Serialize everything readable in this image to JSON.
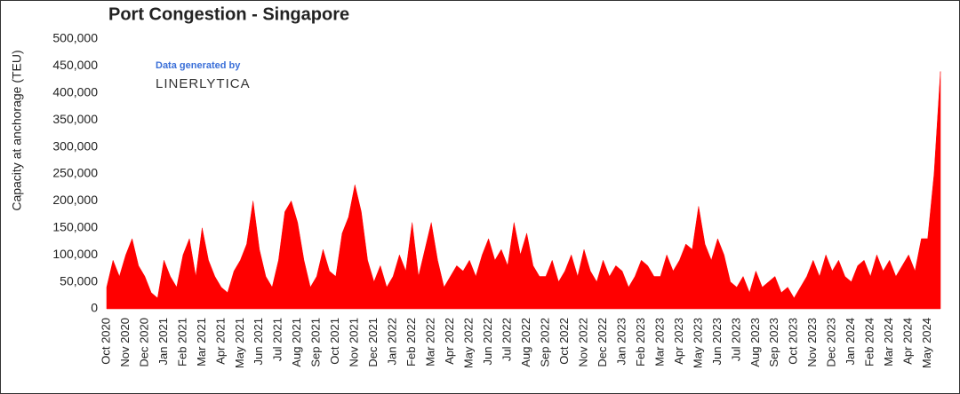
{
  "chart_data": {
    "type": "area",
    "title": "Port Congestion - Singapore",
    "y_label": "Capacity at anchorage (TEU)",
    "annotations": [
      "Data generated by",
      "LINERLYTICA"
    ],
    "color": "#ff0000",
    "ylim": [
      0,
      500000
    ],
    "yticks": [
      0,
      {
        "value": 50000,
        "label": "50,000"
      },
      {
        "value": 100000,
        "label": "100,000"
      },
      {
        "value": 150000,
        "label": "150,000"
      },
      {
        "value": 200000,
        "label": "200,000"
      },
      {
        "value": 250000,
        "label": "250,000"
      },
      {
        "value": 300000,
        "label": "300,000"
      },
      {
        "value": 350000,
        "label": "350,000"
      },
      {
        "value": 400000,
        "label": "400,000"
      },
      {
        "value": 450000,
        "label": "450,000"
      },
      {
        "value": 500000,
        "label": "500,000"
      }
    ],
    "categories": [
      "Oct 2020",
      null,
      null,
      "Nov 2020",
      null,
      null,
      "Dec 2020",
      null,
      null,
      "Jan 2021",
      null,
      null,
      "Feb 2021",
      null,
      null,
      "Mar 2021",
      null,
      null,
      "Apr 2021",
      null,
      null,
      "May 2021",
      null,
      null,
      "Jun 2021",
      null,
      null,
      "Jul 2021",
      null,
      null,
      "Aug 2021",
      null,
      null,
      "Sep 2021",
      null,
      null,
      "Oct 2021",
      null,
      null,
      "Nov 2021",
      null,
      null,
      "Dec 2021",
      null,
      null,
      "Jan 2022",
      null,
      null,
      "Feb 2022",
      null,
      null,
      "Mar 2022",
      null,
      null,
      "Apr 2022",
      null,
      null,
      "May 2022",
      null,
      null,
      "Jun 2022",
      null,
      null,
      "Jul 2022",
      null,
      null,
      "Aug 2022",
      null,
      null,
      "Sep 2022",
      null,
      null,
      "Oct 2022",
      null,
      null,
      "Nov 2022",
      null,
      null,
      "Dec 2022",
      null,
      null,
      "Jan 2023",
      null,
      null,
      "Feb 2023",
      null,
      null,
      "Mar 2023",
      null,
      null,
      "Apr 2023",
      null,
      null,
      "May 2023",
      null,
      null,
      "Jun 2023",
      null,
      null,
      "Jul 2023",
      null,
      null,
      "Aug 2023",
      null,
      null,
      "Sep 2023",
      null,
      null,
      "Oct 2023",
      null,
      null,
      "Nov 2023",
      null,
      null,
      "Dec 2023",
      null,
      null,
      "Jan 2024",
      null,
      null,
      "Feb 2024",
      null,
      null,
      "Mar 2024",
      null,
      null,
      "Apr 2024",
      null,
      null,
      "May 2024",
      null,
      null
    ],
    "values": [
      40000,
      90000,
      60000,
      100000,
      130000,
      80000,
      60000,
      30000,
      20000,
      90000,
      60000,
      40000,
      100000,
      130000,
      60000,
      150000,
      90000,
      60000,
      40000,
      30000,
      70000,
      90000,
      120000,
      200000,
      110000,
      60000,
      40000,
      90000,
      180000,
      200000,
      160000,
      90000,
      40000,
      60000,
      110000,
      70000,
      60000,
      140000,
      170000,
      230000,
      180000,
      90000,
      50000,
      80000,
      40000,
      60000,
      100000,
      70000,
      160000,
      60000,
      110000,
      160000,
      90000,
      40000,
      60000,
      80000,
      70000,
      90000,
      60000,
      100000,
      130000,
      90000,
      110000,
      80000,
      160000,
      100000,
      140000,
      80000,
      60000,
      60000,
      90000,
      50000,
      70000,
      100000,
      60000,
      110000,
      70000,
      50000,
      90000,
      60000,
      80000,
      70000,
      40000,
      60000,
      90000,
      80000,
      60000,
      60000,
      100000,
      70000,
      90000,
      120000,
      110000,
      190000,
      120000,
      90000,
      130000,
      100000,
      50000,
      40000,
      60000,
      30000,
      70000,
      40000,
      50000,
      60000,
      30000,
      40000,
      20000,
      40000,
      60000,
      90000,
      60000,
      100000,
      70000,
      90000,
      60000,
      50000,
      80000,
      90000,
      60000,
      100000,
      70000,
      90000,
      60000,
      80000,
      100000,
      70000,
      130000,
      130000,
      250000,
      440000
    ]
  }
}
